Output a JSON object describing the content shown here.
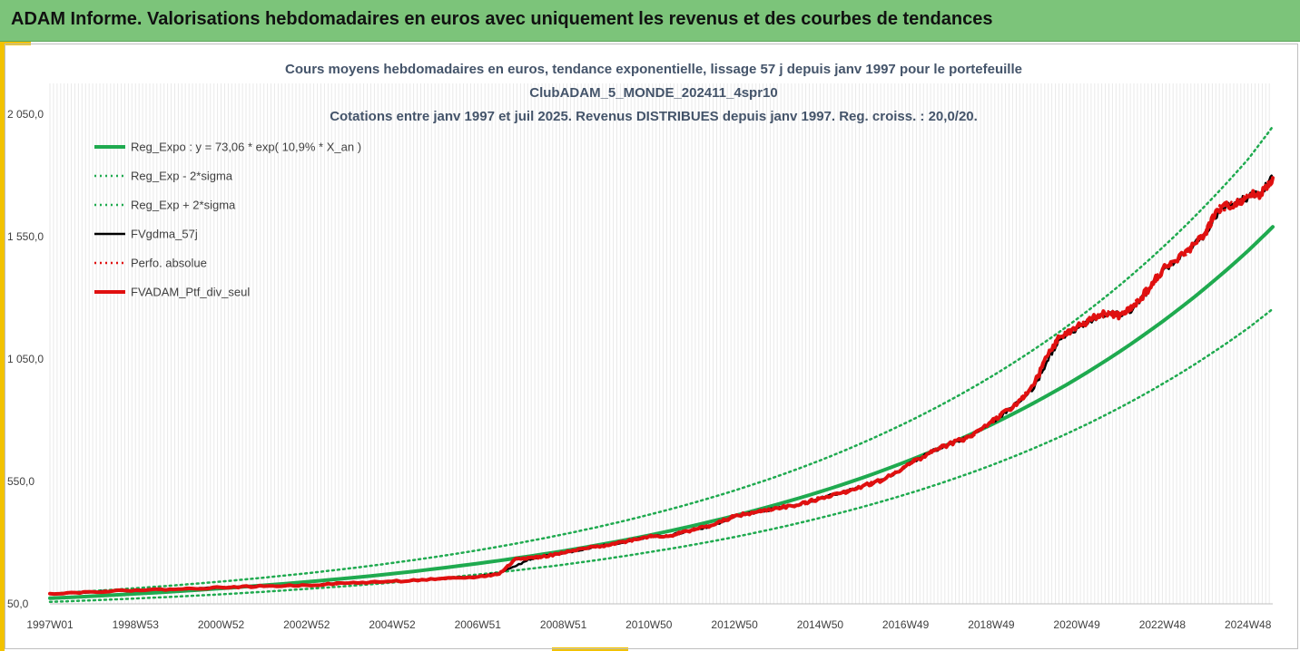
{
  "banner": {
    "title": "ADAM Informe. Valorisations hebdomadaires en euros avec uniquement les revenus et des courbes de tendances"
  },
  "colors": {
    "banner_bg": "#7cc47a",
    "accent": "#f2c200",
    "reg_expo": "#1faa4f",
    "fvgdma": "#000000",
    "fvadam": "#e01010",
    "perfo": "#e01010"
  },
  "chart_data": {
    "type": "line",
    "title_lines": [
      "Cours moyens hebdomadaires en euros, tendance exponentielle, lissage 57 j depuis janv 1997 pour le portefeuille",
      "ClubADAM_5_MONDE_202411_4spr10",
      "Cotations entre janv 1997 et juil 2025. Revenus DISTRIBUES depuis janv 1997. Reg. croiss. : 20,0/20."
    ],
    "x_tick_labels": [
      "1997W01",
      "1998W53",
      "2000W52",
      "2002W52",
      "2004W52",
      "2006W51",
      "2008W51",
      "2010W50",
      "2012W50",
      "2014W50",
      "2016W49",
      "2018W49",
      "2020W49",
      "2022W48",
      "2024W48"
    ],
    "x_tick_years": [
      1997.0,
      1999.0,
      2001.0,
      2003.0,
      2005.0,
      2007.0,
      2009.0,
      2011.0,
      2013.0,
      2015.0,
      2017.0,
      2019.0,
      2021.0,
      2023.0,
      2025.0
    ],
    "x_range": [
      1997.0,
      2025.58
    ],
    "y_tick_labels": [
      "50,0",
      "550,0",
      "1 050,0",
      "1 550,0",
      "2 050,0"
    ],
    "y_ticks": [
      50,
      550,
      1050,
      1550,
      2050
    ],
    "ylim": [
      50,
      2250
    ],
    "grid": "vertical",
    "legend_position": "top-left",
    "series": [
      {
        "name": "Reg_Expo : y = 73,06 * exp( 10,9% *  X_an )",
        "style": "solid-thick",
        "color": "#1faa4f",
        "x": [
          1997.0,
          1999.0,
          2001.0,
          2003.0,
          2005.0,
          2007.0,
          2009.0,
          2011.0,
          2013.0,
          2015.0,
          2017.0,
          2019.0,
          2021.0,
          2023.0,
          2025.0,
          2025.58
        ],
        "values": [
          73,
          91,
          113,
          140,
          173,
          215,
          266,
          330,
          410,
          508,
          630,
          782,
          970,
          1203,
          1492,
          1590
        ]
      },
      {
        "name": "Reg_Exp - 2*sigma",
        "style": "dotted",
        "color": "#1faa4f",
        "x": [
          1997.0,
          1999.0,
          2001.0,
          2003.0,
          2005.0,
          2007.0,
          2009.0,
          2011.0,
          2013.0,
          2015.0,
          2017.0,
          2019.0,
          2021.0,
          2023.0,
          2025.0,
          2025.58
        ],
        "values": [
          58,
          72,
          89,
          111,
          137,
          170,
          210,
          261,
          323,
          401,
          497,
          616,
          764,
          948,
          1176,
          1255
        ]
      },
      {
        "name": "Reg_Exp + 2*sigma",
        "style": "dotted",
        "color": "#1faa4f",
        "x": [
          1997.0,
          1999.0,
          2001.0,
          2003.0,
          2005.0,
          2007.0,
          2009.0,
          2011.0,
          2013.0,
          2015.0,
          2017.0,
          2019.0,
          2021.0,
          2023.0,
          2025.0,
          2025.58
        ],
        "values": [
          92,
          114,
          141,
          175,
          217,
          269,
          334,
          414,
          513,
          636,
          789,
          978,
          1213,
          1505,
          1866,
          2000
        ]
      },
      {
        "name": "FVgdma_57j",
        "style": "solid",
        "color": "#000000",
        "x": [
          1997.0,
          1998.0,
          1999.0,
          2000.0,
          2001.0,
          2002.0,
          2003.0,
          2004.0,
          2005.0,
          2006.0,
          2007.0,
          2007.5,
          2007.9,
          2008.2,
          2008.5,
          2009.0,
          2009.5,
          2010.0,
          2010.5,
          2011.0,
          2011.5,
          2012.0,
          2012.5,
          2013.0,
          2013.5,
          2014.0,
          2014.5,
          2015.0,
          2015.5,
          2016.0,
          2016.5,
          2017.0,
          2017.5,
          2018.0,
          2018.5,
          2019.0,
          2019.5,
          2020.0,
          2020.3,
          2020.6,
          2021.0,
          2021.5,
          2021.8,
          2022.0,
          2022.3,
          2022.7,
          2023.0,
          2023.5,
          2024.0,
          2024.3,
          2024.7,
          2025.0,
          2025.3,
          2025.58
        ],
        "values": [
          92,
          99,
          106,
          110,
          117,
          122,
          126,
          135,
          142,
          150,
          162,
          176,
          205,
          232,
          242,
          257,
          275,
          292,
          305,
          325,
          330,
          350,
          370,
          405,
          425,
          440,
          455,
          480,
          505,
          530,
          560,
          610,
          665,
          700,
          735,
          790,
          855,
          930,
          1040,
          1130,
          1175,
          1220,
          1240,
          1230,
          1250,
          1335,
          1410,
          1480,
          1560,
          1650,
          1690,
          1710,
          1730,
          1790
        ]
      },
      {
        "name": "Perfo. absolue",
        "style": "dotted",
        "color": "#e01010",
        "x": [
          1997.0,
          1998.0,
          1999.0,
          2000.0,
          2001.0,
          2002.0,
          2003.0,
          2004.0,
          2005.0,
          2006.0,
          2007.0,
          2007.5,
          2007.9,
          2008.2,
          2008.5,
          2009.0,
          2009.5,
          2010.0,
          2010.5,
          2011.0,
          2011.5,
          2012.0,
          2012.5,
          2013.0,
          2013.5,
          2014.0,
          2014.5,
          2015.0,
          2015.5,
          2016.0,
          2016.5,
          2017.0,
          2017.5,
          2018.0,
          2018.5,
          2019.0,
          2019.5,
          2020.0,
          2020.3,
          2020.6,
          2021.0,
          2021.5,
          2021.8,
          2022.0,
          2022.3,
          2022.7,
          2023.0,
          2023.5,
          2024.0,
          2024.3,
          2024.7,
          2025.0,
          2025.3,
          2025.58
        ],
        "values": [
          92,
          99,
          106,
          110,
          117,
          122,
          126,
          135,
          142,
          150,
          160,
          172,
          235,
          238,
          242,
          258,
          276,
          290,
          307,
          326,
          328,
          352,
          372,
          408,
          424,
          442,
          453,
          482,
          503,
          532,
          558,
          612,
          662,
          702,
          733,
          795,
          850,
          945,
          1060,
          1140,
          1180,
          1230,
          1235,
          1225,
          1260,
          1340,
          1415,
          1475,
          1565,
          1660,
          1685,
          1715,
          1725,
          1790
        ]
      },
      {
        "name": "FVADAM_Ptf_div_seul",
        "style": "solid-thick",
        "color": "#e01010",
        "x": [
          1997.0,
          1998.0,
          1999.0,
          2000.0,
          2001.0,
          2002.0,
          2003.0,
          2004.0,
          2005.0,
          2006.0,
          2007.0,
          2007.5,
          2007.9,
          2008.2,
          2008.5,
          2009.0,
          2009.5,
          2010.0,
          2010.5,
          2011.0,
          2011.5,
          2012.0,
          2012.5,
          2013.0,
          2013.5,
          2014.0,
          2014.5,
          2015.0,
          2015.5,
          2016.0,
          2016.5,
          2017.0,
          2017.5,
          2018.0,
          2018.5,
          2019.0,
          2019.5,
          2020.0,
          2020.3,
          2020.6,
          2021.0,
          2021.5,
          2021.8,
          2022.0,
          2022.3,
          2022.7,
          2023.0,
          2023.5,
          2024.0,
          2024.3,
          2024.7,
          2025.0,
          2025.3,
          2025.58
        ],
        "values": [
          92,
          99,
          106,
          110,
          117,
          122,
          126,
          135,
          142,
          150,
          160,
          172,
          235,
          238,
          242,
          258,
          276,
          290,
          307,
          326,
          328,
          352,
          372,
          408,
          424,
          442,
          453,
          482,
          503,
          532,
          558,
          612,
          662,
          702,
          733,
          795,
          850,
          945,
          1060,
          1140,
          1180,
          1230,
          1235,
          1225,
          1260,
          1340,
          1415,
          1475,
          1565,
          1660,
          1685,
          1715,
          1725,
          1790
        ]
      }
    ]
  }
}
